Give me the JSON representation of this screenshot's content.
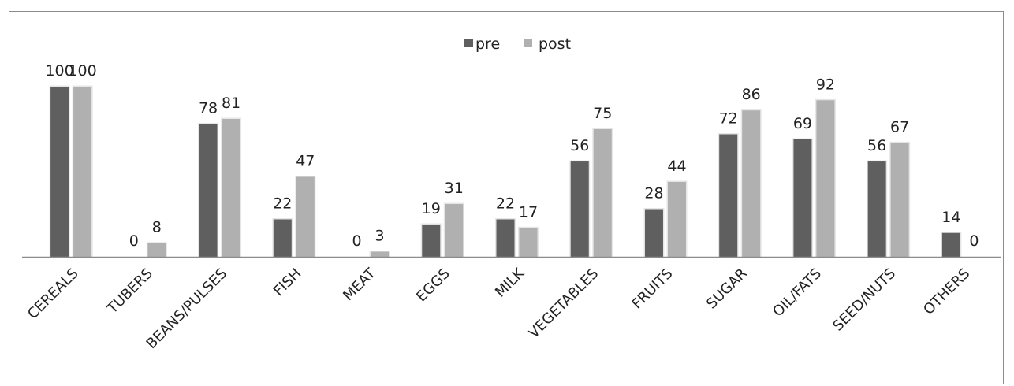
{
  "chart_data": {
    "type": "bar",
    "categories": [
      "CEREALS",
      "TUBERS",
      "BEANS/PULSES",
      "FISH",
      "MEAT",
      "EGGS",
      "MILK",
      "VEGETABLES",
      "FRUITS",
      "SUGAR",
      "OIL/FATS",
      "SEED/NUTS",
      "OTHERS"
    ],
    "series": [
      {
        "name": "pre",
        "values": [
          100,
          0,
          78,
          22,
          0,
          19,
          22,
          56,
          28,
          72,
          69,
          56,
          14
        ]
      },
      {
        "name": "post",
        "values": [
          100,
          8,
          81,
          47,
          3,
          31,
          17,
          75,
          44,
          86,
          92,
          67,
          0
        ]
      }
    ],
    "ylim": [
      0,
      100
    ],
    "grid": false,
    "legend_position": "top-center",
    "colors": {
      "pre": "#5f5f5f",
      "post": "#b0b0b0",
      "axis": "#8c8c8c",
      "border": "#8c8c8c"
    }
  }
}
